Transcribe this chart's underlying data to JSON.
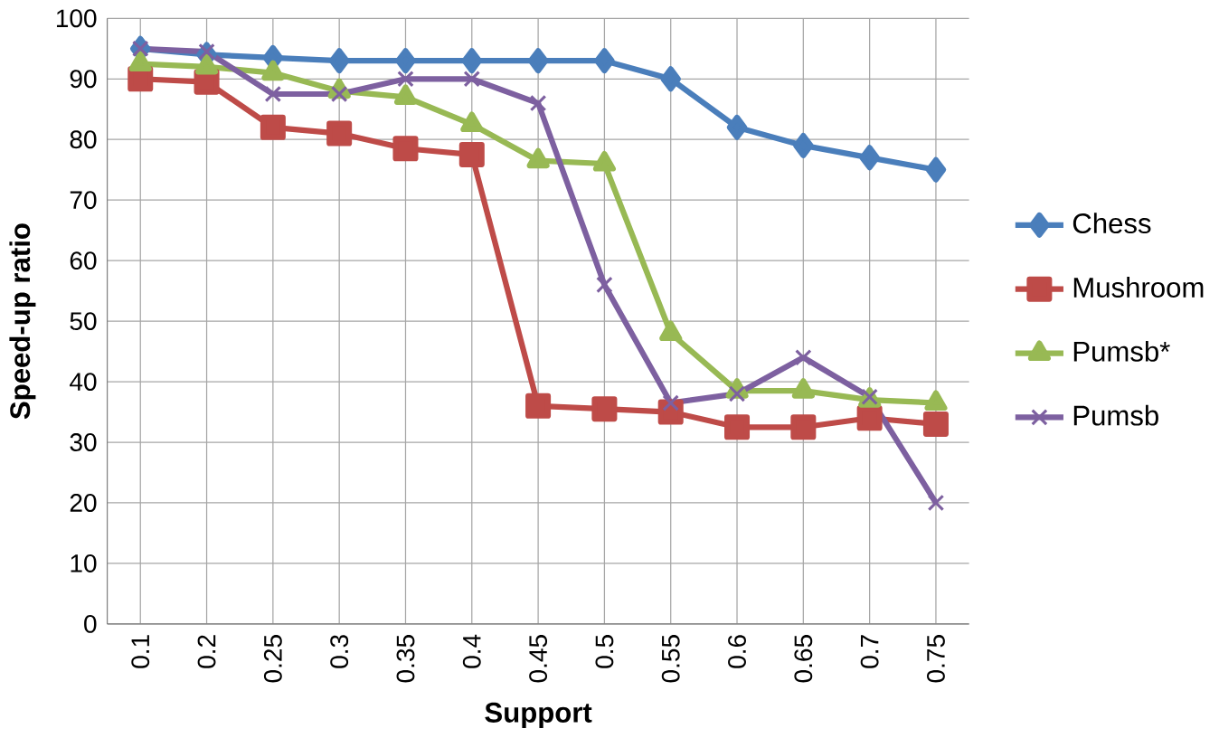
{
  "chart_data": {
    "type": "line",
    "xlabel": "Support",
    "ylabel": "Speed-up ratio",
    "categories": [
      "0.1",
      "0.2",
      "0.25",
      "0.3",
      "0.35",
      "0.4",
      "0.45",
      "0.5",
      "0.55",
      "0.6",
      "0.65",
      "0.7",
      "0.75"
    ],
    "series": [
      {
        "name": "Chess",
        "color": "#4a7ebb",
        "marker": "diamond",
        "values": [
          95,
          94,
          93.5,
          93,
          93,
          93,
          93,
          93,
          90,
          82,
          79,
          77,
          75
        ]
      },
      {
        "name": "Mushroom",
        "color": "#be4b48",
        "marker": "square",
        "values": [
          90,
          89.5,
          82,
          81,
          78.5,
          77.5,
          36,
          35.5,
          35,
          32.5,
          32.5,
          34,
          33
        ]
      },
      {
        "name": "Pumsb*",
        "color": "#98b954",
        "marker": "triangle",
        "values": [
          92.5,
          92,
          91,
          88,
          87,
          82.5,
          76.5,
          76,
          48,
          38.5,
          38.5,
          37,
          36.5
        ]
      },
      {
        "name": "Pumsb",
        "color": "#7d60a0",
        "marker": "cross",
        "values": [
          95,
          94.5,
          87.5,
          87.5,
          90,
          90,
          86,
          56,
          36.5,
          38,
          44,
          37.5,
          20
        ]
      }
    ],
    "ylim": [
      0,
      100
    ],
    "yticks": [
      0,
      10,
      20,
      30,
      40,
      50,
      60,
      70,
      80,
      90,
      100
    ],
    "grid": true,
    "legend": "right",
    "line_style": "solid"
  }
}
